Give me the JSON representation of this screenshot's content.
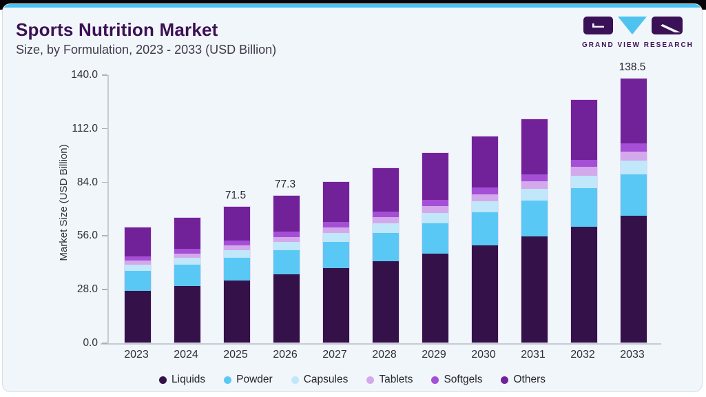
{
  "page": {
    "title": "Sports Nutrition Market",
    "subtitle": "Size, by Formulation, 2023 - 2033 (USD Billion)"
  },
  "logo": {
    "text": "GRAND VIEW RESEARCH",
    "dark_color": "#3A1056",
    "blue_color": "#4EC3F0"
  },
  "chart_data": {
    "type": "bar",
    "stacked": true,
    "title": "Sports Nutrition Market Size, by Formulation, 2023 - 2033 (USD Billion)",
    "xlabel": "",
    "ylabel": "Market Size (USD Billion)",
    "ylim": [
      0,
      140
    ],
    "yticks": [
      "0.0",
      "28.0",
      "56.0",
      "84.0",
      "112.0",
      "140.0"
    ],
    "grid": false,
    "legend_position": "bottom",
    "categories": [
      "2023",
      "2024",
      "2025",
      "2026",
      "2027",
      "2028",
      "2029",
      "2030",
      "2031",
      "2032",
      "2033"
    ],
    "series": [
      {
        "name": "Liquids",
        "color": "#341249",
        "values": [
          27.4,
          29.9,
          32.7,
          35.8,
          39.1,
          42.7,
          46.6,
          51.0,
          55.7,
          60.8,
          66.5
        ]
      },
      {
        "name": "Powder",
        "color": "#5AC8F5",
        "values": [
          10.3,
          11.1,
          12.0,
          12.9,
          13.9,
          15.0,
          16.2,
          17.4,
          18.8,
          20.2,
          21.8
        ]
      },
      {
        "name": "Capsules",
        "color": "#C0E7FA",
        "values": [
          3.4,
          3.7,
          3.9,
          4.2,
          4.6,
          4.9,
          5.3,
          5.7,
          6.1,
          6.6,
          7.1
        ]
      },
      {
        "name": "Tablets",
        "color": "#D3A9EB",
        "values": [
          2.2,
          2.4,
          2.6,
          2.8,
          3.1,
          3.3,
          3.6,
          3.9,
          4.2,
          4.6,
          5.0
        ]
      },
      {
        "name": "Softgels",
        "color": "#A44FD6",
        "values": [
          2.2,
          2.3,
          2.5,
          2.7,
          2.8,
          3.0,
          3.2,
          3.4,
          3.6,
          3.9,
          4.1
        ]
      },
      {
        "name": "Others",
        "color": "#722298",
        "values": [
          15.3,
          16.6,
          17.8,
          18.9,
          21.1,
          22.8,
          24.7,
          26.8,
          29.0,
          31.4,
          34.0
        ]
      }
    ],
    "bar_value_labels": [
      "",
      "",
      "71.5",
      "77.3",
      "",
      "",
      "",
      "",
      "",
      "",
      "138.5"
    ]
  }
}
